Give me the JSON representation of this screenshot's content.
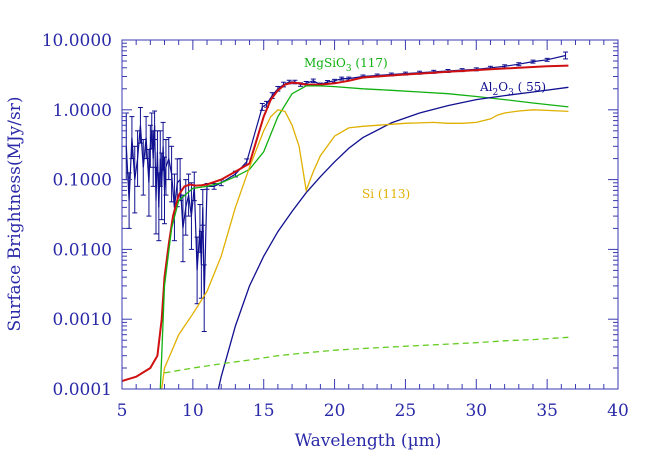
{
  "chart_data": {
    "type": "line",
    "xlabel": "Wavelength (µm)",
    "ylabel": "Surface Brightness(MJy/sr)",
    "xlim": [
      5,
      40
    ],
    "ylim": [
      0.0001,
      10.0
    ],
    "yscale": "log",
    "xticks": [
      5,
      10,
      15,
      20,
      25,
      30,
      35,
      40
    ],
    "yticks": [
      0.0001,
      0.001,
      0.01,
      0.1,
      1.0,
      10.0
    ],
    "ytick_labels": [
      "0.0001",
      "0.0010",
      "0.0100",
      "0.1000",
      "1.0000",
      "10.0000"
    ],
    "grid": false,
    "colors": {
      "axis": "#2a2aa8",
      "total_model": "#d01010",
      "observed": "#101090",
      "mgsio3": "#10b010",
      "al2o3": "#101090",
      "si": "#e0b000",
      "dashed": "#66cc22"
    },
    "annotations": [
      {
        "text": "MgSiO3 (117)",
        "color": "#10b010"
      },
      {
        "text": "Al2O3 ( 55)",
        "color": "#101090"
      },
      {
        "text": "Si (113)",
        "color": "#e0b000"
      }
    ],
    "series": [
      {
        "style": "errorbar",
        "x": [
          5.3,
          5.5,
          5.7,
          5.9,
          6.1,
          6.3,
          6.5,
          6.7,
          6.9,
          7.0,
          7.1,
          7.2,
          7.3,
          7.4,
          7.5,
          7.6,
          7.7,
          7.8,
          7.9,
          8.0,
          8.1,
          8.3,
          8.5,
          8.7,
          8.9,
          9.1,
          9.3,
          9.5,
          9.7,
          9.9,
          10.1,
          10.3,
          10.5,
          10.6,
          10.7,
          10.8,
          11.0,
          11.5,
          12.0,
          13.0,
          13.8,
          14.9,
          15.2,
          15.6,
          16.0,
          16.4,
          16.8,
          17.2,
          17.6,
          18.0,
          18.5,
          19.0,
          19.5,
          20.0,
          20.5,
          21.0,
          22.0,
          23.0,
          24.0,
          25.0,
          26.0,
          27.0,
          28.0,
          29.0,
          30.0,
          31.0,
          32.0,
          33.0,
          34.0,
          35.0,
          36.3
        ],
        "y": [
          0.3,
          0.05,
          0.4,
          0.1,
          0.2,
          0.6,
          0.15,
          0.4,
          0.09,
          0.3,
          0.5,
          0.2,
          0.6,
          0.05,
          0.25,
          0.04,
          0.2,
          0.08,
          0.3,
          0.07,
          0.15,
          0.2,
          0.12,
          0.04,
          0.09,
          0.1,
          0.02,
          0.04,
          0.06,
          0.03,
          0.08,
          0.005,
          0.02,
          0.006,
          0.04,
          0.002,
          0.08,
          0.08,
          0.09,
          0.12,
          0.18,
          1.1,
          1.2,
          1.6,
          2.0,
          2.3,
          2.5,
          2.5,
          2.3,
          2.4,
          2.6,
          2.3,
          2.5,
          2.6,
          2.8,
          2.8,
          3.0,
          3.1,
          3.2,
          3.3,
          3.4,
          3.5,
          3.6,
          3.7,
          3.8,
          4.0,
          4.2,
          4.5,
          4.9,
          5.2,
          6.0
        ],
        "err_factor": [
          3.0,
          2.5,
          2.0,
          3.0,
          2.5,
          1.8,
          2.5,
          2.0,
          3.0,
          2.0,
          1.8,
          2.5,
          1.6,
          3.0,
          2.0,
          3.0,
          2.5,
          3.0,
          2.2,
          3.0,
          2.5,
          2.0,
          2.5,
          3.0,
          2.2,
          2.0,
          3.0,
          2.5,
          2.0,
          3.0,
          1.6,
          3.0,
          2.2,
          3.0,
          1.8,
          3.0,
          1.1,
          1.1,
          1.1,
          1.1,
          1.1,
          1.12,
          1.1,
          1.1,
          1.08,
          1.08,
          1.06,
          1.06,
          1.06,
          1.06,
          1.06,
          1.05,
          1.05,
          1.05,
          1.05,
          1.05,
          1.05,
          1.05,
          1.05,
          1.05,
          1.05,
          1.05,
          1.05,
          1.05,
          1.05,
          1.05,
          1.05,
          1.05,
          1.05,
          1.05,
          1.12
        ],
        "color": "#101090"
      },
      {
        "style": "solid",
        "x": [
          5.0,
          6.0,
          7.0,
          7.5,
          7.8,
          8.0,
          8.3,
          8.6,
          9.0,
          9.4,
          9.8,
          10.2,
          10.6,
          11.0,
          12.0,
          13.0,
          14.0,
          15.0,
          15.5,
          16.0,
          16.5,
          17.0,
          17.5,
          18.0,
          19.0,
          20.0,
          21.0,
          22.0,
          23.0,
          24.0,
          25.0,
          26.0,
          27.0,
          28.0,
          29.0,
          30.0,
          31.0,
          32.0,
          33.0,
          34.0,
          35.0,
          36.5
        ],
        "y": [
          0.00013,
          0.00015,
          0.0002,
          0.0003,
          0.001,
          0.004,
          0.012,
          0.03,
          0.06,
          0.08,
          0.085,
          0.082,
          0.083,
          0.085,
          0.1,
          0.13,
          0.17,
          0.8,
          1.4,
          1.9,
          2.3,
          2.45,
          2.4,
          2.3,
          2.3,
          2.4,
          2.6,
          2.9,
          3.0,
          3.1,
          3.2,
          3.3,
          3.4,
          3.5,
          3.6,
          3.7,
          3.8,
          3.9,
          4.0,
          4.1,
          4.2,
          4.3
        ],
        "color": "#d01010"
      },
      {
        "style": "solid",
        "x": [
          7.7,
          7.8,
          8.0,
          8.5,
          9.0,
          10.0,
          11.0,
          12.0,
          13.0,
          14.0,
          15.0,
          16.0,
          17.0,
          18.0,
          19.0,
          20.0,
          22.0,
          24.0,
          26.0,
          28.0,
          30.0,
          32.0,
          34.0,
          36.5
        ],
        "y": [
          0.0001,
          0.0003,
          0.003,
          0.02,
          0.05,
          0.075,
          0.08,
          0.09,
          0.11,
          0.14,
          0.25,
          0.8,
          1.7,
          2.2,
          2.2,
          2.15,
          2.0,
          1.9,
          1.8,
          1.7,
          1.55,
          1.4,
          1.25,
          1.1
        ],
        "color": "#10b010"
      },
      {
        "style": "solid",
        "x": [
          11.8,
          12.0,
          13.0,
          14.0,
          15.0,
          16.0,
          17.0,
          18.0,
          19.0,
          20.0,
          21.0,
          22.0,
          24.0,
          26.0,
          28.0,
          30.0,
          32.0,
          34.0,
          36.5
        ],
        "y": [
          0.0001,
          0.00015,
          0.0008,
          0.003,
          0.008,
          0.018,
          0.035,
          0.065,
          0.11,
          0.18,
          0.28,
          0.4,
          0.65,
          0.9,
          1.15,
          1.4,
          1.6,
          1.8,
          2.1
        ],
        "color": "#101090"
      },
      {
        "style": "solid",
        "x": [
          7.8,
          8.0,
          9.0,
          10.0,
          11.0,
          12.0,
          13.0,
          14.0,
          15.0,
          15.5,
          16.0,
          16.5,
          17.0,
          17.5,
          18.0,
          18.5,
          19.0,
          20.0,
          21.0,
          22.0,
          23.0,
          24.0,
          25.0,
          26.0,
          27.0,
          28.0,
          29.0,
          30.0,
          31.0,
          31.5,
          32.0,
          33.0,
          34.0,
          35.0,
          36.5
        ],
        "y": [
          0.0001,
          0.0002,
          0.0006,
          0.0012,
          0.0025,
          0.008,
          0.04,
          0.15,
          0.5,
          0.8,
          1.0,
          0.95,
          0.6,
          0.3,
          0.07,
          0.13,
          0.22,
          0.42,
          0.55,
          0.58,
          0.6,
          0.62,
          0.64,
          0.65,
          0.66,
          0.64,
          0.64,
          0.66,
          0.74,
          0.84,
          0.9,
          0.96,
          1.0,
          0.98,
          0.95
        ],
        "color": "#e0b000"
      },
      {
        "style": "dashed",
        "x": [
          8.0,
          10.0,
          12.0,
          14.0,
          16.0,
          18.0,
          20.0,
          22.0,
          24.0,
          26.0,
          28.0,
          30.0,
          32.0,
          34.0,
          36.5
        ],
        "y": [
          0.00017,
          0.0002,
          0.00023,
          0.00026,
          0.0003,
          0.00033,
          0.00036,
          0.00038,
          0.0004,
          0.00042,
          0.00044,
          0.00046,
          0.00049,
          0.00051,
          0.00055
        ],
        "color": "#66cc22"
      }
    ]
  }
}
